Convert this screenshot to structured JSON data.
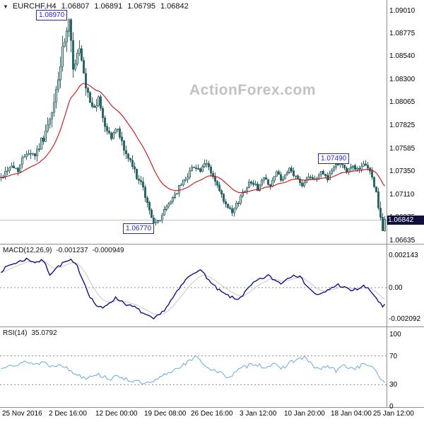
{
  "header": {
    "symbol_arrow": "▼",
    "symbol": "EURCHF,H4",
    "ohlc": {
      "open": "1.06807",
      "high": "1.06891",
      "low": "1.06795",
      "close": "1.06842"
    }
  },
  "watermark": "ActionForex.com",
  "annotations": {
    "high_label": "1.08970",
    "resistance_label": "1.07490",
    "support_label": "1.06770"
  },
  "price_badge": "1.06842",
  "price_axis_ticks": [
    "1.09010",
    "1.08775",
    "1.08540",
    "1.08300",
    "1.08065",
    "1.07825",
    "1.07585",
    "1.07350",
    "1.07110",
    "1.06875",
    "1.06635"
  ],
  "time_axis_labels": [
    "25 Nov 2016",
    "2 Dec 16:00",
    "12 Dec 00:00",
    "19 Dec 08:00",
    "26 Dec 16:00",
    "3 Jan 12:00",
    "10 Jan 20:00",
    "18 Jan 04:00",
    "25 Jan 12:00"
  ],
  "panels": {
    "macd": {
      "title": "MACD(12,26,9)",
      "value": "-0.001237",
      "signal": "-0.000949",
      "axis": [
        "0.002143",
        "0.00",
        "-0.002092"
      ]
    },
    "rsi": {
      "title": "RSI(14)",
      "value": "35.0792",
      "axis": [
        "100",
        "70",
        "30",
        "0"
      ]
    }
  },
  "colors": {
    "candle": "#2d6666",
    "candle_up_fill": "#ffffff",
    "ma": "#cc1111",
    "macd": "#101090",
    "macd_signal": "#c8c8c8",
    "rsi": "#69aadd",
    "label_blue": "#2a2ac0",
    "badge_bg": "#10103a",
    "badge_text": "#ffffff",
    "watermark": "#c2c2c2",
    "separator": "#8f8f8f",
    "dash": "#8a8a8a",
    "last_price_line": "#bdbdbd"
  },
  "chart_data": [
    {
      "type": "candlestick",
      "title": "EURCHF H4",
      "candles": 182,
      "seed": 42,
      "ylim": [
        1.06635,
        1.0901
      ],
      "y_ticks": [
        1.0901,
        1.08775,
        1.0854,
        1.083,
        1.08065,
        1.07825,
        1.07585,
        1.0735,
        1.0711,
        1.06875,
        1.06635
      ],
      "x_tick_labels": [
        "25 Nov 2016",
        "2 Dec 16:00",
        "12 Dec 00:00",
        "19 Dec 08:00",
        "26 Dec 16:00",
        "3 Jan 12:00",
        "10 Jan 20:00",
        "18 Jan 04:00",
        "25 Jan 12:00"
      ],
      "x_tick_positions": [
        1,
        23,
        45,
        68,
        90,
        113,
        134,
        156,
        176
      ],
      "last_ohlc": {
        "open": 1.06807,
        "high": 1.06891,
        "low": 1.06795,
        "close": 1.06842
      },
      "key_levels": {
        "swing_high": 1.0897,
        "resistance": 1.0749,
        "swing_low": 1.0677,
        "last": 1.06842
      },
      "annotation_anchors": {
        "high": {
          "index": 32,
          "price": 1.0897
        },
        "resistance": {
          "index": 165,
          "price": 1.0749
        },
        "support": {
          "index": 73,
          "price": 1.0677
        }
      },
      "ma_overlay": {
        "type": "ema",
        "alpha": 0.08,
        "color": "red"
      },
      "close_keyframes": [
        [
          0,
          1.0728,
          0.0009
        ],
        [
          4,
          1.074,
          0.001
        ],
        [
          8,
          1.0737,
          0.0009
        ],
        [
          12,
          1.0756,
          0.0011
        ],
        [
          16,
          1.0752,
          0.001
        ],
        [
          20,
          1.077,
          0.0013
        ],
        [
          24,
          1.0792,
          0.0016
        ],
        [
          27,
          1.0832,
          0.0021
        ],
        [
          30,
          1.0868,
          0.0024
        ],
        [
          32,
          1.0885,
          0.0024
        ],
        [
          34,
          1.0845,
          0.0022
        ],
        [
          37,
          1.086,
          0.0018
        ],
        [
          40,
          1.0818,
          0.0016
        ],
        [
          43,
          1.08,
          0.0014
        ],
        [
          46,
          1.0808,
          0.0012
        ],
        [
          49,
          1.0782,
          0.0012
        ],
        [
          52,
          1.077,
          0.0011
        ],
        [
          55,
          1.078,
          0.001
        ],
        [
          58,
          1.0757,
          0.0011
        ],
        [
          61,
          1.0744,
          0.001
        ],
        [
          64,
          1.073,
          0.001
        ],
        [
          67,
          1.0716,
          0.001
        ],
        [
          70,
          1.0694,
          0.001
        ],
        [
          73,
          1.0679,
          0.0009
        ],
        [
          76,
          1.069,
          0.0008
        ],
        [
          79,
          1.0701,
          0.0008
        ],
        [
          82,
          1.0711,
          0.0008
        ],
        [
          85,
          1.0721,
          0.0008
        ],
        [
          88,
          1.0731,
          0.0008
        ],
        [
          91,
          1.0741,
          0.0008
        ],
        [
          94,
          1.0735,
          0.0008
        ],
        [
          97,
          1.0743,
          0.0008
        ],
        [
          100,
          1.0729,
          0.0008
        ],
        [
          103,
          1.0714,
          0.0008
        ],
        [
          106,
          1.0699,
          0.0008
        ],
        [
          109,
          1.0691,
          0.0008
        ],
        [
          112,
          1.0704,
          0.0008
        ],
        [
          115,
          1.0717,
          0.0008
        ],
        [
          118,
          1.0725,
          0.0007
        ],
        [
          121,
          1.0717,
          0.0007
        ],
        [
          124,
          1.0728,
          0.0007
        ],
        [
          127,
          1.0721,
          0.0007
        ],
        [
          130,
          1.0733,
          0.0007
        ],
        [
          133,
          1.0725,
          0.0007
        ],
        [
          136,
          1.0737,
          0.0007
        ],
        [
          139,
          1.0729,
          0.0007
        ],
        [
          142,
          1.0721,
          0.0007
        ],
        [
          145,
          1.0731,
          0.0007
        ],
        [
          148,
          1.0725,
          0.0007
        ],
        [
          151,
          1.0735,
          0.0007
        ],
        [
          154,
          1.0728,
          0.0007
        ],
        [
          157,
          1.0739,
          0.0007
        ],
        [
          160,
          1.0747,
          0.0007
        ],
        [
          163,
          1.0734,
          0.0007
        ],
        [
          166,
          1.0741,
          0.0007
        ],
        [
          169,
          1.0735,
          0.0007
        ],
        [
          172,
          1.0743,
          0.0007
        ],
        [
          175,
          1.0729,
          0.0008
        ],
        [
          177,
          1.0712,
          0.001
        ],
        [
          179,
          1.0686,
          0.0013
        ],
        [
          180,
          1.0671,
          0.0011
        ],
        [
          181,
          1.0684,
          0.0008
        ]
      ]
    },
    {
      "type": "line",
      "name": "MACD(12,26,9)",
      "current": -0.001237,
      "signal_current": -0.000949,
      "ylim": [
        -0.0024,
        0.0024
      ],
      "y_ticks": [
        0.002143,
        0,
        -0.002092
      ],
      "zero_line": true,
      "seed": 7,
      "noise": 0.0001,
      "signal": {
        "type": "ema",
        "alpha": 0.2
      },
      "keyframes": [
        [
          0,
          0.0011
        ],
        [
          4,
          0.0015
        ],
        [
          8,
          0.0017
        ],
        [
          12,
          0.0019
        ],
        [
          16,
          0.0017
        ],
        [
          20,
          0.0018
        ],
        [
          23,
          0.0009
        ],
        [
          26,
          0.0013
        ],
        [
          30,
          0.0017
        ],
        [
          33,
          0.0018
        ],
        [
          36,
          0.0014
        ],
        [
          39,
          0.0004
        ],
        [
          42,
          -0.0006
        ],
        [
          45,
          -0.0012
        ],
        [
          48,
          -0.0014
        ],
        [
          51,
          -0.001
        ],
        [
          54,
          -0.0007
        ],
        [
          57,
          -0.0009
        ],
        [
          60,
          -0.0012
        ],
        [
          63,
          -0.0013
        ],
        [
          66,
          -0.0016
        ],
        [
          69,
          -0.0019
        ],
        [
          72,
          -0.0021
        ],
        [
          75,
          -0.0018
        ],
        [
          78,
          -0.0013
        ],
        [
          81,
          -0.0007
        ],
        [
          84,
          -0.0001
        ],
        [
          87,
          0.0005
        ],
        [
          90,
          0.0009
        ],
        [
          93,
          0.0012
        ],
        [
          96,
          0.0009
        ],
        [
          99,
          0.0003
        ],
        [
          102,
          -0.0001
        ],
        [
          105,
          -0.0004
        ],
        [
          108,
          -0.0006
        ],
        [
          111,
          -0.0008
        ],
        [
          114,
          -0.0005
        ],
        [
          117,
          0
        ],
        [
          120,
          0.0004
        ],
        [
          123,
          0.0006
        ],
        [
          126,
          0.0008
        ],
        [
          129,
          0.0005
        ],
        [
          132,
          0.0003
        ],
        [
          135,
          0.0006
        ],
        [
          138,
          0.0009
        ],
        [
          141,
          0.0007
        ],
        [
          144,
          0.0002
        ],
        [
          147,
          -0.0003
        ],
        [
          150,
          -0.0005
        ],
        [
          153,
          -0.0003
        ],
        [
          156,
          0
        ],
        [
          159,
          0.0002
        ],
        [
          162,
          0
        ],
        [
          165,
          -0.0002
        ],
        [
          168,
          -0.0001
        ],
        [
          171,
          0.0001
        ],
        [
          174,
          -0.0002
        ],
        [
          176,
          -0.0005
        ],
        [
          178,
          -0.0009
        ],
        [
          180,
          -0.0013
        ],
        [
          181,
          -0.0012
        ]
      ]
    },
    {
      "type": "line",
      "name": "RSI(14)",
      "current": 35.0792,
      "ylim": [
        0,
        100
      ],
      "levels": [
        70,
        30
      ],
      "y_ticks": [
        100,
        70,
        30,
        0
      ],
      "seed": 13,
      "noise": 3,
      "keyframes": [
        [
          0,
          52
        ],
        [
          4,
          60
        ],
        [
          8,
          56
        ],
        [
          12,
          63
        ],
        [
          16,
          58
        ],
        [
          20,
          62
        ],
        [
          24,
          55
        ],
        [
          28,
          60
        ],
        [
          32,
          50
        ],
        [
          36,
          44
        ],
        [
          40,
          40
        ],
        [
          44,
          45
        ],
        [
          48,
          42
        ],
        [
          52,
          38
        ],
        [
          56,
          42
        ],
        [
          60,
          37
        ],
        [
          64,
          34
        ],
        [
          68,
          31
        ],
        [
          72,
          33
        ],
        [
          76,
          42
        ],
        [
          80,
          48
        ],
        [
          84,
          55
        ],
        [
          88,
          61
        ],
        [
          91,
          66
        ],
        [
          93,
          69
        ],
        [
          96,
          57
        ],
        [
          100,
          50
        ],
        [
          104,
          45
        ],
        [
          108,
          41
        ],
        [
          112,
          50
        ],
        [
          116,
          56
        ],
        [
          120,
          60
        ],
        [
          124,
          54
        ],
        [
          128,
          59
        ],
        [
          132,
          51
        ],
        [
          136,
          61
        ],
        [
          140,
          65
        ],
        [
          143,
          68
        ],
        [
          146,
          59
        ],
        [
          150,
          51
        ],
        [
          154,
          56
        ],
        [
          158,
          49
        ],
        [
          162,
          57
        ],
        [
          166,
          52
        ],
        [
          170,
          57
        ],
        [
          174,
          58
        ],
        [
          176,
          50
        ],
        [
          178,
          42
        ],
        [
          180,
          36
        ],
        [
          181,
          35
        ]
      ]
    }
  ]
}
